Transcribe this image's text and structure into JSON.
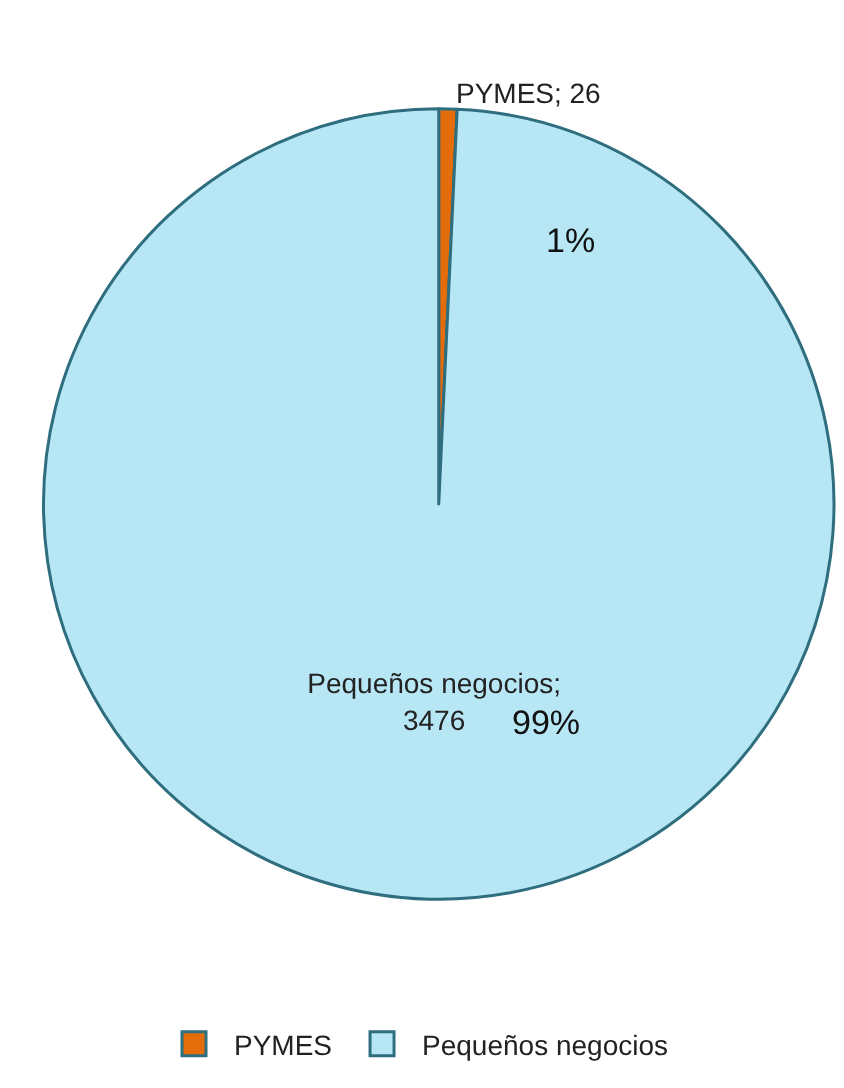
{
  "chart_data": {
    "type": "pie",
    "categories": [
      "PYMES",
      "Pequeños negocios"
    ],
    "values": [
      26,
      3476
    ],
    "colors": [
      "#e46c0a",
      "#b7e6f5"
    ],
    "value_labels": [
      "PYMES; 26",
      "Pequeños negocios;\n3476"
    ],
    "annotations": [
      "1%",
      "99%"
    ],
    "legend": "bottom"
  }
}
